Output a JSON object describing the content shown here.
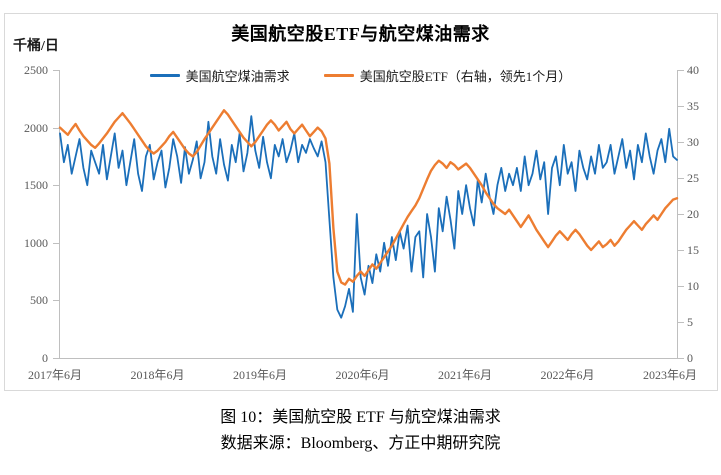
{
  "figure": {
    "title": "美国航空股ETF与航空煤油需求",
    "unit_label": "千桶/日",
    "caption": "图 10：美国航空股 ETF 与航空煤油需求",
    "source": "数据来源：Bloomberg、方正中期研究院"
  },
  "colors": {
    "demand_blue": "#1B6FBA",
    "etf_orange": "#ED7D31",
    "axis_gray": "#bfbfbf",
    "tick_text_gray": "#595959",
    "border_gray": "#d9d9d9"
  },
  "chart_data": {
    "type": "line",
    "title": "美国航空股ETF与航空煤油需求",
    "x_labels": [
      "2017年6月",
      "2018年6月",
      "2019年6月",
      "2020年6月",
      "2021年6月",
      "2022年6月",
      "2023年6月"
    ],
    "left_axis": {
      "unit": "千桶/日",
      "ticks": [
        "2500",
        "2000",
        "1500",
        "1000",
        "500",
        "0"
      ],
      "range": [
        0,
        2500
      ]
    },
    "right_axis": {
      "ticks": [
        "40",
        "35",
        "30",
        "25",
        "20",
        "15",
        "10",
        "5",
        "0"
      ],
      "range": [
        0,
        40
      ]
    },
    "grid": false,
    "legend_position": "top",
    "series": [
      {
        "name": "美国航空煤油需求",
        "axis": "left",
        "color": "#1B6FBA",
        "stroke_width": 1.8,
        "values": [
          1950,
          1700,
          1850,
          1600,
          1750,
          1900,
          1650,
          1500,
          1800,
          1700,
          1600,
          1850,
          1550,
          1750,
          1950,
          1650,
          1800,
          1500,
          1700,
          1900,
          1600,
          1450,
          1750,
          1850,
          1550,
          1700,
          1800,
          1480,
          1650,
          1900,
          1750,
          1520,
          1830,
          1600,
          1720,
          1880,
          1560,
          1700,
          2050,
          1750,
          1600,
          1900,
          1680,
          1540,
          1850,
          1700,
          1950,
          1620,
          1780,
          2100,
          1800,
          1650,
          1920,
          1700,
          1560,
          1850,
          1750,
          1900,
          1700,
          1800,
          1950,
          1700,
          1850,
          1780,
          1900,
          1820,
          1750,
          1880,
          1700,
          1200,
          700,
          420,
          350,
          450,
          600,
          400,
          1250,
          700,
          550,
          800,
          650,
          900,
          750,
          1000,
          800,
          1050,
          850,
          1100,
          950,
          1150,
          750,
          1050,
          1100,
          700,
          1250,
          1050,
          750,
          1300,
          1100,
          1400,
          1200,
          950,
          1450,
          1250,
          1500,
          1300,
          1150,
          1550,
          1350,
          1600,
          1400,
          1250,
          1500,
          1650,
          1450,
          1600,
          1500,
          1650,
          1450,
          1750,
          1500,
          1600,
          1800,
          1550,
          1700,
          1250,
          1650,
          1750,
          1500,
          1850,
          1600,
          1700,
          1450,
          1800,
          1650,
          1550,
          1750,
          1600,
          1850,
          1650,
          1700,
          1850,
          1600,
          1750,
          1900,
          1650,
          1800,
          1550,
          1850,
          1700,
          1950,
          1750,
          1600,
          1800,
          1900,
          1700,
          1990,
          1750,
          1720
        ]
      },
      {
        "name": "美国航空股ETF（右轴，领先1个月）",
        "axis": "right",
        "color": "#ED7D31",
        "stroke_width": 2.4,
        "values": [
          32,
          31.5,
          31,
          31.8,
          32.5,
          31.6,
          30.8,
          30.2,
          29.6,
          29.2,
          29.8,
          30.5,
          31.2,
          32,
          32.8,
          33.4,
          34,
          33.3,
          32.6,
          31.8,
          31,
          30.2,
          29.4,
          28.8,
          28.4,
          28.8,
          29.4,
          30,
          30.8,
          31.4,
          30.6,
          29.8,
          29,
          28.4,
          28,
          28.6,
          29.5,
          30.4,
          31.2,
          32,
          32.8,
          33.6,
          34.4,
          33.8,
          33,
          32.2,
          31.4,
          30.6,
          30,
          29.4,
          30,
          30.8,
          31.6,
          32.4,
          33,
          32.4,
          31.6,
          32.2,
          32.8,
          31.8,
          31.2,
          31.8,
          32.4,
          31.6,
          30.8,
          31.4,
          32,
          31.5,
          30.5,
          27,
          18,
          12,
          10.5,
          10.2,
          11,
          10.6,
          11.4,
          12,
          11.4,
          12.2,
          13,
          12.4,
          13.2,
          14,
          14.8,
          15.6,
          16.6,
          17.6,
          18.6,
          19.6,
          20.4,
          21.2,
          22.2,
          23.5,
          24.8,
          26,
          26.8,
          27.4,
          27,
          26.4,
          27.2,
          26.8,
          26.2,
          26.6,
          27,
          26.4,
          25.6,
          24.8,
          24,
          23,
          22.2,
          21.4,
          20.8,
          20.4,
          20,
          20.6,
          19.8,
          19,
          18.2,
          19,
          19.8,
          18.8,
          17.8,
          17,
          16.2,
          15.4,
          16.2,
          17,
          17.6,
          17,
          16.4,
          17.2,
          17.8,
          17.2,
          16.4,
          15.6,
          15,
          15.6,
          16.2,
          15.4,
          15.8,
          16.4,
          15.6,
          16.2,
          17,
          17.8,
          18.4,
          19,
          18.4,
          17.8,
          18.6,
          19.2,
          19.8,
          19.2,
          20,
          20.8,
          21.4,
          22,
          22.2
        ]
      }
    ]
  }
}
